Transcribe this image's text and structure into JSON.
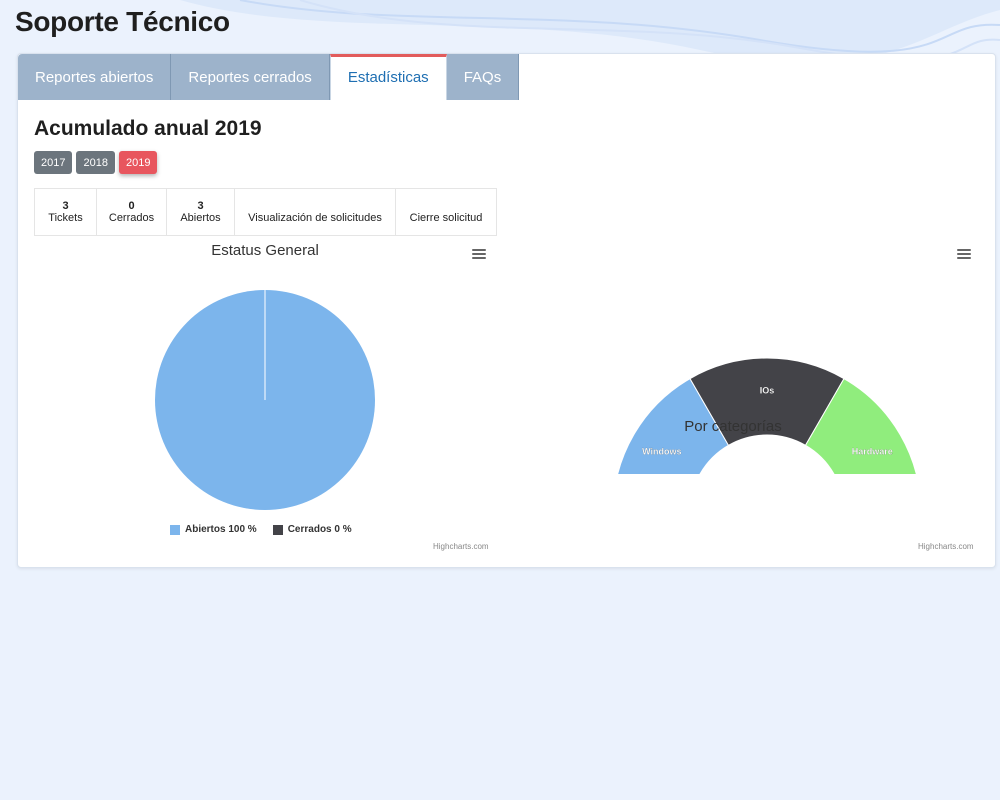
{
  "header": {
    "title": "Soporte Técnico"
  },
  "tabs": [
    {
      "label": "Reportes abiertos",
      "active": false
    },
    {
      "label": "Reportes cerrados",
      "active": false
    },
    {
      "label": "Estadísticas",
      "active": true
    },
    {
      "label": "FAQs",
      "active": false
    }
  ],
  "section": {
    "title": "Acumulado anual 2019"
  },
  "years": [
    {
      "label": "2017",
      "active": false
    },
    {
      "label": "2018",
      "active": false
    },
    {
      "label": "2019",
      "active": true
    }
  ],
  "stats": [
    {
      "value": "3",
      "label": "Tickets"
    },
    {
      "value": "0",
      "label": "Cerrados"
    },
    {
      "value": "3",
      "label": "Abiertos"
    },
    {
      "value": "",
      "label": "Visualización de solicitudes"
    },
    {
      "value": "",
      "label": "Cierre solicitud"
    }
  ],
  "credits": "Highcharts.com",
  "colors": {
    "blue": "#7cb5ec",
    "dark": "#434348",
    "green": "#90ed7d",
    "tab_active_border": "#e25c5c",
    "year_active": "#e8565e"
  },
  "chart_data": [
    {
      "type": "pie",
      "title": "Estatus General",
      "series": [
        {
          "name": "Abiertos",
          "value": 100,
          "legend": "Abiertos 100 %",
          "color": "#7cb5ec"
        },
        {
          "name": "Cerrados",
          "value": 0,
          "legend": "Cerrados 0 %",
          "color": "#434348"
        }
      ],
      "legend_position": "bottom-center"
    },
    {
      "type": "pie",
      "variant": "semi-donut",
      "title": "Por categorías",
      "series": [
        {
          "name": "Windows",
          "value": 1,
          "color": "#7cb5ec"
        },
        {
          "name": "IOs",
          "value": 1,
          "color": "#434348"
        },
        {
          "name": "Hardware",
          "value": 1,
          "color": "#90ed7d"
        }
      ]
    }
  ]
}
